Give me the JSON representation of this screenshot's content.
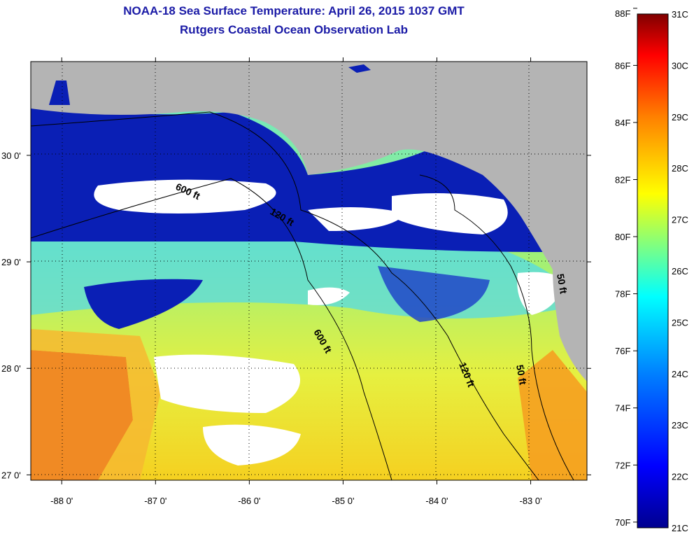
{
  "title": {
    "line1": "NOAA-18 Sea Surface Temperature:  April 26, 2015 1037 GMT",
    "line2": "Rutgers Coastal Ocean Observation Lab"
  },
  "axes": {
    "x_ticks": [
      {
        "lon": -88,
        "label": "-88 0'"
      },
      {
        "lon": -87,
        "label": "-87 0'"
      },
      {
        "lon": -86,
        "label": "-86 0'"
      },
      {
        "lon": -85,
        "label": "-85 0'"
      },
      {
        "lon": -84,
        "label": "-84 0'"
      },
      {
        "lon": -83,
        "label": "-83 0'"
      }
    ],
    "y_ticks": [
      {
        "lat": 30,
        "label": "30 0'"
      },
      {
        "lat": 29,
        "label": "29 0'"
      },
      {
        "lat": 28,
        "label": "28 0'"
      },
      {
        "lat": 27,
        "label": "27 0'"
      }
    ],
    "lon_range": [
      -88.33,
      -82.4
    ],
    "lat_range": [
      26.95,
      30.88
    ]
  },
  "contours": [
    {
      "label": "600 ft"
    },
    {
      "label": "120 ft"
    },
    {
      "label": "50 ft"
    },
    {
      "label": "600 ft"
    },
    {
      "label": "120 ft"
    },
    {
      "label": "50 ft"
    }
  ],
  "colorbar": {
    "f_labels": [
      "88F",
      "86F",
      "84F",
      "82F",
      "80F",
      "78F",
      "76F",
      "74F",
      "72F",
      "70F"
    ],
    "c_labels": [
      "31C",
      "30C",
      "29C",
      "28C",
      "27C",
      "26C",
      "25C",
      "24C",
      "23C",
      "22C",
      "21C"
    ],
    "range_c": [
      21,
      31
    ]
  },
  "colors": {
    "land": "#b4b4b4",
    "title": "#1a1aa6"
  }
}
